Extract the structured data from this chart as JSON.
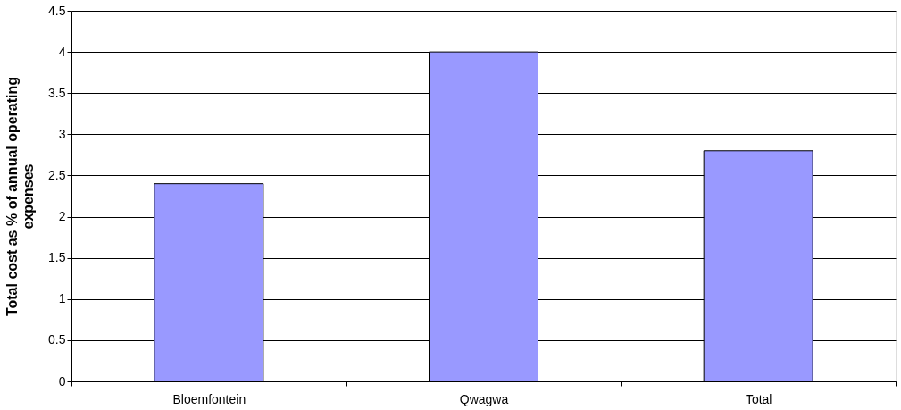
{
  "chart_data": {
    "type": "bar",
    "ylabel": "Total cost as % of annual operating expenses",
    "categories": [
      "Bloemfontein",
      "Qwagwa",
      "Total"
    ],
    "values": [
      2.4,
      4,
      2.8
    ],
    "color": "#9999ff",
    "ylim": [
      0,
      4.5
    ],
    "yticks": [
      0,
      0.5,
      1,
      1.5,
      2,
      2.5,
      3,
      3.5,
      4,
      4.5
    ],
    "grid": "y"
  }
}
